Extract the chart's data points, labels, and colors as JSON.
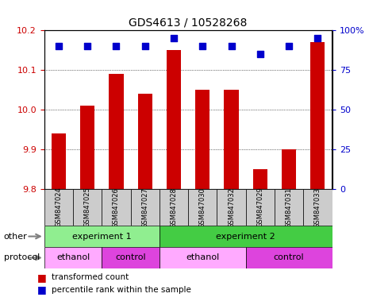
{
  "title": "GDS4613 / 10528268",
  "samples": [
    "GSM847024",
    "GSM847025",
    "GSM847026",
    "GSM847027",
    "GSM847028",
    "GSM847030",
    "GSM847032",
    "GSM847029",
    "GSM847031",
    "GSM847033"
  ],
  "transformed_counts": [
    9.94,
    10.01,
    10.09,
    10.04,
    10.15,
    10.05,
    10.05,
    9.85,
    9.9,
    10.17
  ],
  "percentile_ranks": [
    90,
    90,
    90,
    90,
    95,
    90,
    90,
    85,
    90,
    95
  ],
  "ylim_left": [
    9.8,
    10.2
  ],
  "ylim_right": [
    0,
    100
  ],
  "yticks_left": [
    9.8,
    9.9,
    10.0,
    10.1,
    10.2
  ],
  "yticks_right": [
    0,
    25,
    50,
    75,
    100
  ],
  "bar_color": "#cc0000",
  "dot_color": "#0000cc",
  "grid_color": "#000000",
  "background_color": "#ffffff",
  "tick_label_color_left": "#cc0000",
  "tick_label_color_right": "#0000cc",
  "other_groups": [
    {
      "label": "experiment 1",
      "start": 0,
      "end": 4,
      "color": "#90ee90"
    },
    {
      "label": "experiment 2",
      "start": 4,
      "end": 10,
      "color": "#44cc44"
    }
  ],
  "protocol_groups": [
    {
      "label": "ethanol",
      "start": 0,
      "end": 2,
      "color": "#ffaaff"
    },
    {
      "label": "control",
      "start": 2,
      "end": 4,
      "color": "#dd44dd"
    },
    {
      "label": "ethanol",
      "start": 4,
      "end": 7,
      "color": "#ffaaff"
    },
    {
      "label": "control",
      "start": 7,
      "end": 10,
      "color": "#dd44dd"
    }
  ],
  "legend_items": [
    {
      "label": "transformed count",
      "color": "#cc0000",
      "marker": "s"
    },
    {
      "label": "percentile rank within the sample",
      "color": "#0000cc",
      "marker": "s"
    }
  ],
  "other_label": "other",
  "protocol_label": "protocol",
  "xticklabel_bg": "#dddddd"
}
